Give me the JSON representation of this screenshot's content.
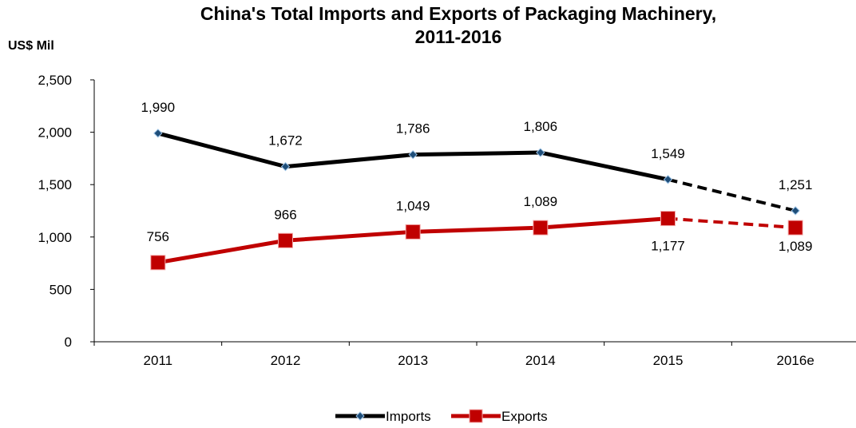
{
  "chart_data": {
    "type": "line",
    "title": "China's Total Imports and Exports of Packaging Machinery,",
    "subtitle": "2011-2016",
    "ylabel": "US$ Mil",
    "categories": [
      "2011",
      "2012",
      "2013",
      "2014",
      "2015",
      "2016e"
    ],
    "ylim": [
      0,
      2500
    ],
    "yticks": [
      "0",
      "500",
      "1,000",
      "1,500",
      "2,000",
      "2,500"
    ],
    "ytick_values": [
      0,
      500,
      1000,
      1500,
      2000,
      2500
    ],
    "estimated_from_index": 4,
    "legend_position": "bottom",
    "series": [
      {
        "name": "Imports",
        "values": [
          1990,
          1672,
          1786,
          1806,
          1549,
          1251
        ],
        "labels": [
          "1,990",
          "1,672",
          "1,786",
          "1,806",
          "1,549",
          "1,251"
        ],
        "color": "#000000",
        "marker": "diamond",
        "marker_color": "#1f4e79"
      },
      {
        "name": "Exports",
        "values": [
          756,
          966,
          1049,
          1089,
          1177,
          1089
        ],
        "labels": [
          "756",
          "966",
          "1,049",
          "1,089",
          "1,177",
          "1,089"
        ],
        "color": "#c00000",
        "marker": "square",
        "marker_color": "#c00000"
      }
    ]
  }
}
